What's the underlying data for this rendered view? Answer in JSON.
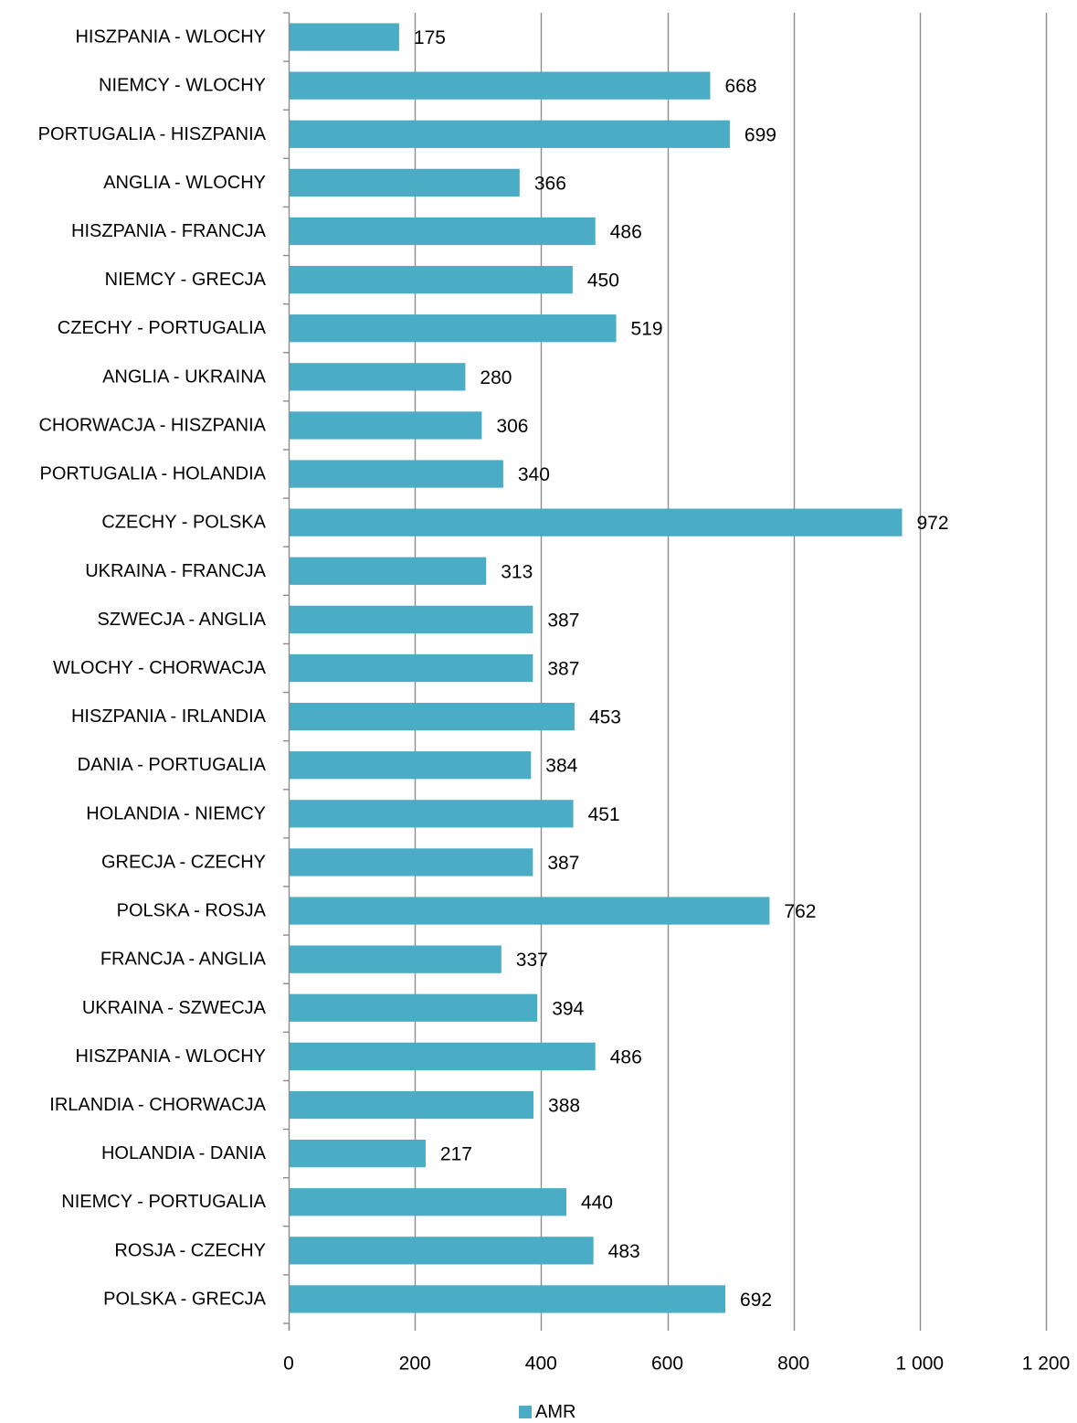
{
  "chart_data": {
    "type": "bar",
    "orientation": "horizontal",
    "categories": [
      "HISZPANIA - WLOCHY",
      "NIEMCY - WLOCHY",
      "PORTUGALIA - HISZPANIA",
      "ANGLIA - WLOCHY",
      "HISZPANIA - FRANCJA",
      "NIEMCY - GRECJA",
      "CZECHY - PORTUGALIA",
      "ANGLIA - UKRAINA",
      "CHORWACJA - HISZPANIA",
      "PORTUGALIA - HOLANDIA",
      "CZECHY - POLSKA",
      "UKRAINA - FRANCJA",
      "SZWECJA - ANGLIA",
      "WLOCHY - CHORWACJA",
      "HISZPANIA - IRLANDIA",
      "DANIA - PORTUGALIA",
      "HOLANDIA - NIEMCY",
      "GRECJA - CZECHY",
      "POLSKA - ROSJA",
      "FRANCJA - ANGLIA",
      "UKRAINA - SZWECJA",
      "HISZPANIA - WLOCHY",
      "IRLANDIA - CHORWACJA",
      "HOLANDIA - DANIA",
      "NIEMCY - PORTUGALIA",
      "ROSJA - CZECHY",
      "POLSKA - GRECJA"
    ],
    "series": [
      {
        "name": "AMR",
        "color": "#4BACC6",
        "values": [
          175,
          668,
          699,
          366,
          486,
          450,
          519,
          280,
          306,
          340,
          972,
          313,
          387,
          387,
          453,
          384,
          451,
          387,
          762,
          337,
          394,
          486,
          388,
          217,
          440,
          483,
          692
        ]
      }
    ],
    "data_labels": [
      "175",
      "668",
      "699",
      "366",
      "486",
      "450",
      "519",
      "280",
      "306",
      "340",
      "972",
      "313",
      "387",
      "387",
      "453",
      "384",
      "451",
      "387",
      "762",
      "337",
      "394",
      "486",
      "388",
      "217",
      "440",
      "483",
      "692"
    ],
    "xlim": [
      0,
      1200
    ],
    "x_ticks": [
      0,
      200,
      400,
      600,
      800,
      1000,
      1200
    ],
    "x_tick_labels": [
      "0",
      "200",
      "400",
      "600",
      "800",
      "1 000",
      "1 200"
    ],
    "grid": "vertical",
    "gridline_color": "#8C8C8C",
    "legend": {
      "position": "bottom",
      "entries": [
        "AMR"
      ]
    },
    "title": "",
    "xlabel": "",
    "ylabel": ""
  }
}
